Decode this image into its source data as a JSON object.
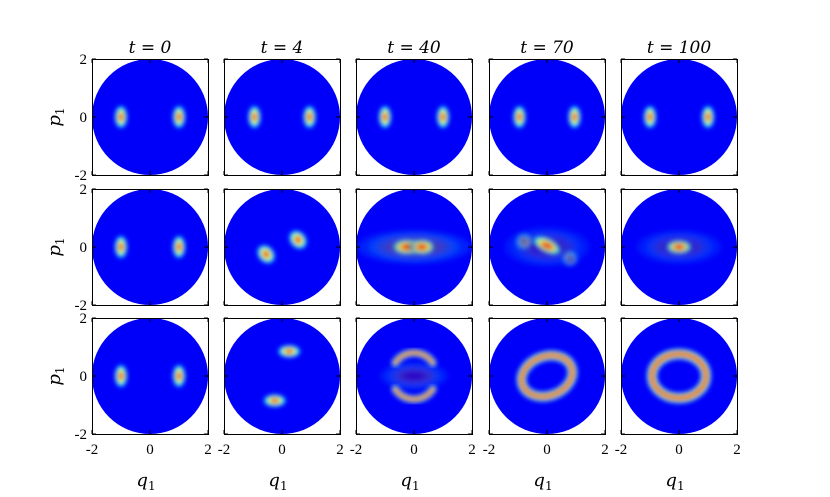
{
  "chart_data": {
    "type": "heatmap",
    "colormap": "jet",
    "columns": [
      {
        "title": "t = 0",
        "t": 0
      },
      {
        "title": "t = 4",
        "t": 4
      },
      {
        "title": "t = 40",
        "t": 40
      },
      {
        "title": "t = 70",
        "t": 70
      },
      {
        "title": "t = 100",
        "t": 100
      }
    ],
    "rows": 3,
    "xlabel": "q",
    "xlabel_sub": "1",
    "ylabel": "p",
    "ylabel_sub": "1",
    "xlim": [
      -2,
      2
    ],
    "ylim": [
      -2,
      2
    ],
    "xticks": [
      {
        "v": -2,
        "label": "-2"
      },
      {
        "v": 0,
        "label": "0"
      },
      {
        "v": 2,
        "label": "2"
      }
    ],
    "yticks": [
      {
        "v": 2,
        "label": "2"
      },
      {
        "v": 0,
        "label": "0"
      },
      {
        "v": -2,
        "label": "-2"
      }
    ],
    "panels": [
      [
        {
          "blobs": [
            {
              "x": -1.0,
              "y": 0,
              "sx": 0.11,
              "sy": 0.2
            },
            {
              "x": 1.0,
              "y": 0,
              "sx": 0.11,
              "sy": 0.2
            }
          ]
        },
        {
          "blobs": [
            {
              "x": -0.95,
              "y": 0,
              "sx": 0.11,
              "sy": 0.2
            },
            {
              "x": 0.95,
              "y": 0,
              "sx": 0.11,
              "sy": 0.2
            }
          ]
        },
        {
          "blobs": [
            {
              "x": -1.0,
              "y": 0,
              "sx": 0.11,
              "sy": 0.2
            },
            {
              "x": 1.0,
              "y": 0,
              "sx": 0.11,
              "sy": 0.2
            }
          ]
        },
        {
          "blobs": [
            {
              "x": -0.95,
              "y": 0,
              "sx": 0.11,
              "sy": 0.2
            },
            {
              "x": 0.95,
              "y": 0,
              "sx": 0.11,
              "sy": 0.2
            }
          ]
        },
        {
          "blobs": [
            {
              "x": -1.0,
              "y": 0,
              "sx": 0.11,
              "sy": 0.2
            },
            {
              "x": 1.0,
              "y": 0,
              "sx": 0.11,
              "sy": 0.2
            }
          ]
        }
      ],
      [
        {
          "blobs": [
            {
              "x": -1.0,
              "y": 0,
              "sx": 0.11,
              "sy": 0.2
            },
            {
              "x": 1.0,
              "y": 0,
              "sx": 0.11,
              "sy": 0.2
            }
          ]
        },
        {
          "blobs": [
            {
              "x": -0.55,
              "y": -0.25,
              "sx": 0.14,
              "sy": 0.18,
              "rot": -40
            },
            {
              "x": 0.55,
              "y": 0.25,
              "sx": 0.14,
              "sy": 0.18,
              "rot": -40
            }
          ]
        },
        {
          "blobs": [
            {
              "x": -0.25,
              "y": 0,
              "sx": 0.25,
              "sy": 0.13
            },
            {
              "x": 0.28,
              "y": 0,
              "sx": 0.22,
              "sy": 0.13
            },
            {
              "x": 0,
              "y": 0,
              "sx": 1.0,
              "sy": 0.3,
              "a": 0.25
            }
          ]
        },
        {
          "blobs": [
            {
              "x": 0,
              "y": 0.05,
              "sx": 0.27,
              "sy": 0.13,
              "rot": 25
            },
            {
              "x": -0.8,
              "y": 0.2,
              "sx": 0.15,
              "sy": 0.15,
              "a": 0.45
            },
            {
              "x": 0.8,
              "y": -0.4,
              "sx": 0.14,
              "sy": 0.14,
              "a": 0.45
            },
            {
              "x": 0,
              "y": 0,
              "sx": 0.75,
              "sy": 0.35,
              "a": 0.18
            }
          ]
        },
        {
          "blobs": [
            {
              "x": 0,
              "y": 0,
              "sx": 0.23,
              "sy": 0.12
            },
            {
              "x": 0,
              "y": 0,
              "sx": 0.75,
              "sy": 0.3,
              "a": 0.18
            }
          ]
        }
      ],
      [
        {
          "blobs": [
            {
              "x": -1.0,
              "y": 0,
              "sx": 0.11,
              "sy": 0.2
            },
            {
              "x": 1.0,
              "y": 0,
              "sx": 0.11,
              "sy": 0.2
            }
          ]
        },
        {
          "blobs": [
            {
              "x": 0.25,
              "y": 0.85,
              "sx": 0.2,
              "sy": 0.11
            },
            {
              "x": -0.25,
              "y": -0.85,
              "sx": 0.2,
              "sy": 0.11
            }
          ]
        },
        {
          "arcs": [
            {
              "cy": 0.1,
              "r": 0.75,
              "ry": 0.7,
              "a0": 30,
              "a1": 150,
              "w": 0.12
            },
            {
              "cy": -0.1,
              "r": 0.75,
              "ry": 0.7,
              "a0": 210,
              "a1": 330,
              "w": 0.12
            }
          ],
          "blobs": [
            {
              "x": 0,
              "y": 0,
              "sx": 0.6,
              "sy": 0.25,
              "a": 0.2
            }
          ]
        },
        {
          "ellipses": [
            {
              "cx": 0,
              "cy": 0,
              "rx": 0.9,
              "ry": 0.68,
              "rot": -20,
              "w": 0.16
            }
          ]
        },
        {
          "ellipses": [
            {
              "cx": 0,
              "cy": 0,
              "rx": 0.93,
              "ry": 0.76,
              "rot": 0,
              "w": 0.17
            }
          ]
        }
      ]
    ]
  }
}
